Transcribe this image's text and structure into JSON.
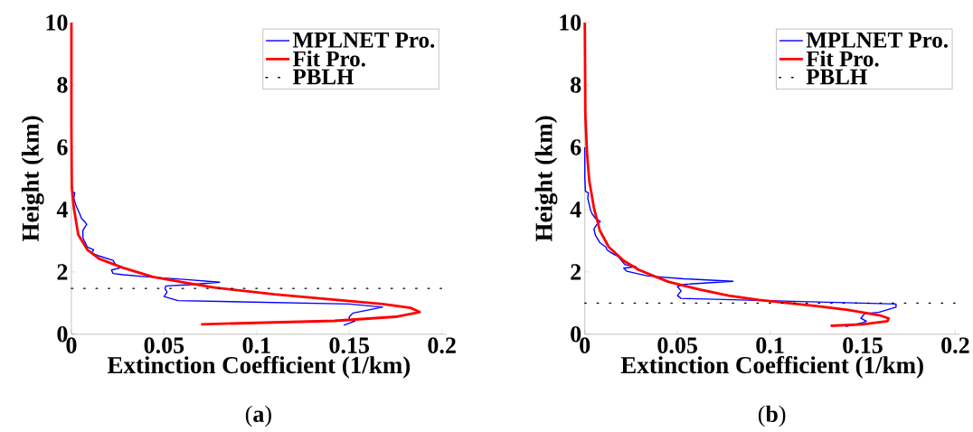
{
  "chart_data": [
    {
      "type": "line",
      "xlabel": "Extinction Coefficient (1/km)",
      "ylabel": "Height (km)",
      "xlim": [
        0,
        0.2025
      ],
      "ylim": [
        0,
        10
      ],
      "xticks": [
        0,
        0.05,
        0.1,
        0.15,
        0.2
      ],
      "yticks": [
        0,
        2,
        4,
        6,
        8,
        10
      ],
      "legend": "top right",
      "annotations": [
        "(**a**)"
      ],
      "ref_lines": [
        {
          "axis": "y",
          "value": 1.47,
          "label": "PBLH",
          "color": "#000000",
          "line_style": "dotted"
        }
      ],
      "series": [
        {
          "name": "MPLNET Pro.",
          "color": "#0000ff",
          "x": [
            0.147,
            0.153,
            0.15,
            0.15,
            0.152,
            0.168,
            0.15,
            0.0575,
            0.05,
            0.0516,
            0.0505,
            0.051,
            0.064,
            0.08,
            0.0607,
            0.041,
            0.028,
            0.0225,
            0.0216,
            0.0265,
            0.024,
            0.0225,
            0.015,
            0.011,
            0.012,
            0.0086,
            0.0062,
            0.0062,
            0.0083,
            0.007,
            0.0054,
            0.0045,
            0.003,
            0.0024,
            0.0013,
            0.0018,
            0.0005
          ],
          "values": [
            0.29,
            0.42,
            0.46,
            0.56,
            0.68,
            0.87,
            0.97,
            1.08,
            1.21,
            1.35,
            1.47,
            1.55,
            1.59,
            1.67,
            1.76,
            1.84,
            1.91,
            1.95,
            2.06,
            2.13,
            2.22,
            2.37,
            2.51,
            2.61,
            2.71,
            2.8,
            3.09,
            3.33,
            3.53,
            3.62,
            3.72,
            3.86,
            4.06,
            4.15,
            4.35,
            4.54,
            4.56
          ]
        },
        {
          "name": "Fit Pro.",
          "color": "#ff0000",
          "x": [
            0.07,
            0.142,
            0.175,
            0.188,
            0.183,
            0.168,
            0.142,
            0.1095,
            0.077,
            0.061,
            0.044,
            0.028,
            0.015,
            0.0086,
            0.0037,
            0.0013,
            0.0002,
            0,
            0
          ],
          "values": [
            0.32,
            0.43,
            0.56,
            0.71,
            0.85,
            0.97,
            1.11,
            1.28,
            1.5,
            1.66,
            1.84,
            2.13,
            2.42,
            2.71,
            3.19,
            4.06,
            4.73,
            6.7,
            10
          ]
        }
      ]
    },
    {
      "type": "line",
      "xlabel": "Extinction Coefficient (1/km)",
      "ylabel": "Height (km)",
      "xlim": [
        0,
        0.2025
      ],
      "ylim": [
        0,
        10
      ],
      "xticks": [
        0,
        0.05,
        0.1,
        0.15,
        0.2
      ],
      "yticks": [
        0,
        2,
        4,
        6,
        8,
        10
      ],
      "legend": "top right",
      "annotations": [
        "(**b**)"
      ],
      "ref_lines": [
        {
          "axis": "y",
          "value": 1.0,
          "label": "PBLH",
          "color": "#000000",
          "line_style": "dotted"
        }
      ],
      "series": [
        {
          "name": "MPLNET Pro.",
          "color": "#0000ff",
          "x": [
            0.1408,
            0.15,
            0.152,
            0.149,
            0.151,
            0.159,
            0.168,
            0.168,
            0.052,
            0.05,
            0.052,
            0.05,
            0.0534,
            0.08,
            0.0534,
            0.034,
            0.0227,
            0.021,
            0.0275,
            0.0218,
            0.0178,
            0.0146,
            0.0121,
            0.0113,
            0.0081,
            0.0057,
            0.0049,
            0.0065,
            0.0084,
            0.0057,
            0.004,
            0.0032,
            0.0024,
            0.0016,
            0.0019,
            0.0003,
            0,
            0
          ],
          "values": [
            0.25,
            0.37,
            0.42,
            0.51,
            0.66,
            0.71,
            0.87,
            0.97,
            1.15,
            1.24,
            1.39,
            1.53,
            1.6,
            1.7,
            1.78,
            1.87,
            2.02,
            2.12,
            2.17,
            2.23,
            2.5,
            2.6,
            2.7,
            2.8,
            2.94,
            3.18,
            3.38,
            3.52,
            3.62,
            3.72,
            3.86,
            3.96,
            4.16,
            4.35,
            4.54,
            4.59,
            5.03,
            6.0
          ]
        },
        {
          "name": "Fit Pro.",
          "color": "#ff0000",
          "x": [
            0.1327,
            0.15,
            0.1634,
            0.164,
            0.159,
            0.142,
            0.126,
            0.11,
            0.094,
            0.0777,
            0.0615,
            0.0453,
            0.0372,
            0.0291,
            0.021,
            0.0129,
            0.0081,
            0.0049,
            0.0024,
            0.0012,
            0.0003,
            0
          ],
          "values": [
            0.27,
            0.32,
            0.42,
            0.51,
            0.61,
            0.78,
            0.9,
            1.0,
            1.1,
            1.24,
            1.44,
            1.68,
            1.87,
            2.07,
            2.36,
            2.8,
            3.33,
            4.06,
            4.93,
            5.8,
            7,
            10
          ]
        }
      ]
    }
  ]
}
